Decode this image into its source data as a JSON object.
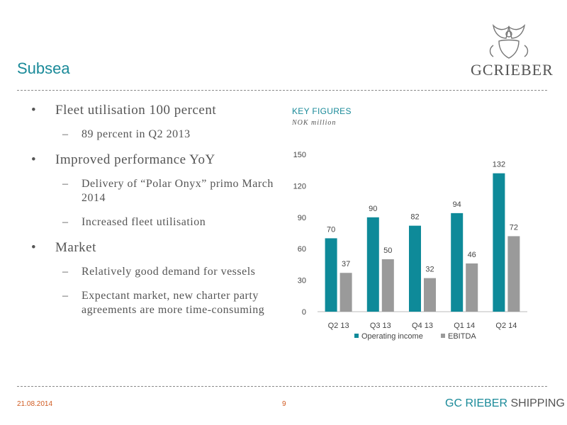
{
  "header": {
    "title": "Subsea",
    "logo_text": "GCRIEBER"
  },
  "bullets": [
    {
      "text": "Fleet utilisation 100 percent",
      "sub": [
        "89 percent in Q2 2013"
      ]
    },
    {
      "text": "Improved performance YoY",
      "sub": [
        "Delivery of “Polar Onyx” primo March 2014",
        "Increased fleet utilisation"
      ]
    },
    {
      "text": "Market",
      "sub": [
        "Relatively good demand for vessels",
        "Expectant market, new charter party agreements are more time-consuming"
      ]
    }
  ],
  "chart_data": {
    "type": "bar",
    "title": "KEY FIGURES",
    "subtitle": "NOK million",
    "categories": [
      "Q2 13",
      "Q3 13",
      "Q4 13",
      "Q1 14",
      "Q2 14"
    ],
    "series": [
      {
        "name": "Operating income",
        "values": [
          70,
          90,
          82,
          94,
          132
        ],
        "color": "#0e8a99"
      },
      {
        "name": "EBITDA",
        "values": [
          37,
          50,
          32,
          46,
          72
        ],
        "color": "#9a9a9a"
      }
    ],
    "yticks": [
      "0",
      "30",
      "60",
      "90",
      "120",
      "150"
    ],
    "ylim": [
      0,
      150
    ],
    "grid": false,
    "legend": "bottom"
  },
  "footer": {
    "date": "21.08.2014",
    "page": "9",
    "brand_bold": "GC RIEBER",
    "brand_rest": " SHIPPING"
  }
}
